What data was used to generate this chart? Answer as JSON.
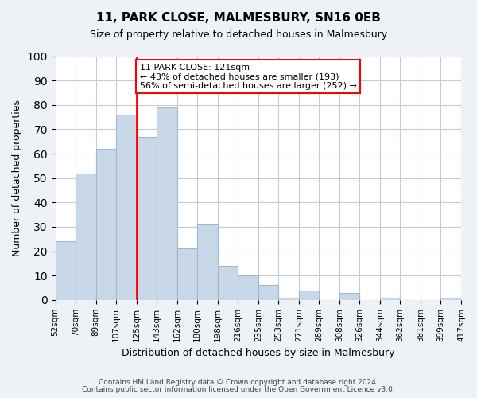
{
  "title": "11, PARK CLOSE, MALMESBURY, SN16 0EB",
  "subtitle": "Size of property relative to detached houses in Malmesbury",
  "xlabel": "Distribution of detached houses by size in Malmesbury",
  "ylabel": "Number of detached properties",
  "bin_labels": [
    "52sqm",
    "70sqm",
    "89sqm",
    "107sqm",
    "125sqm",
    "143sqm",
    "162sqm",
    "180sqm",
    "198sqm",
    "216sqm",
    "235sqm",
    "253sqm",
    "271sqm",
    "289sqm",
    "308sqm",
    "326sqm",
    "344sqm",
    "362sqm",
    "381sqm",
    "399sqm",
    "417sqm"
  ],
  "bar_heights": [
    24,
    52,
    62,
    76,
    67,
    79,
    21,
    31,
    14,
    10,
    6,
    1,
    4,
    0,
    3,
    0,
    1,
    0,
    0,
    1
  ],
  "bar_color": "#c8d8e8",
  "bar_edge_color": "#a0b8cc",
  "vline_color": "red",
  "annotation_title": "11 PARK CLOSE: 121sqm",
  "annotation_line1": "← 43% of detached houses are smaller (193)",
  "annotation_line2": "56% of semi-detached houses are larger (252) →",
  "annotation_box_color": "white",
  "annotation_box_edgecolor": "red",
  "footnote1": "Contains HM Land Registry data © Crown copyright and database right 2024.",
  "footnote2": "Contains public sector information licensed under the Open Government Licence v3.0.",
  "ylim": [
    0,
    100
  ],
  "background_color": "#eef2f6",
  "plot_background": "white"
}
